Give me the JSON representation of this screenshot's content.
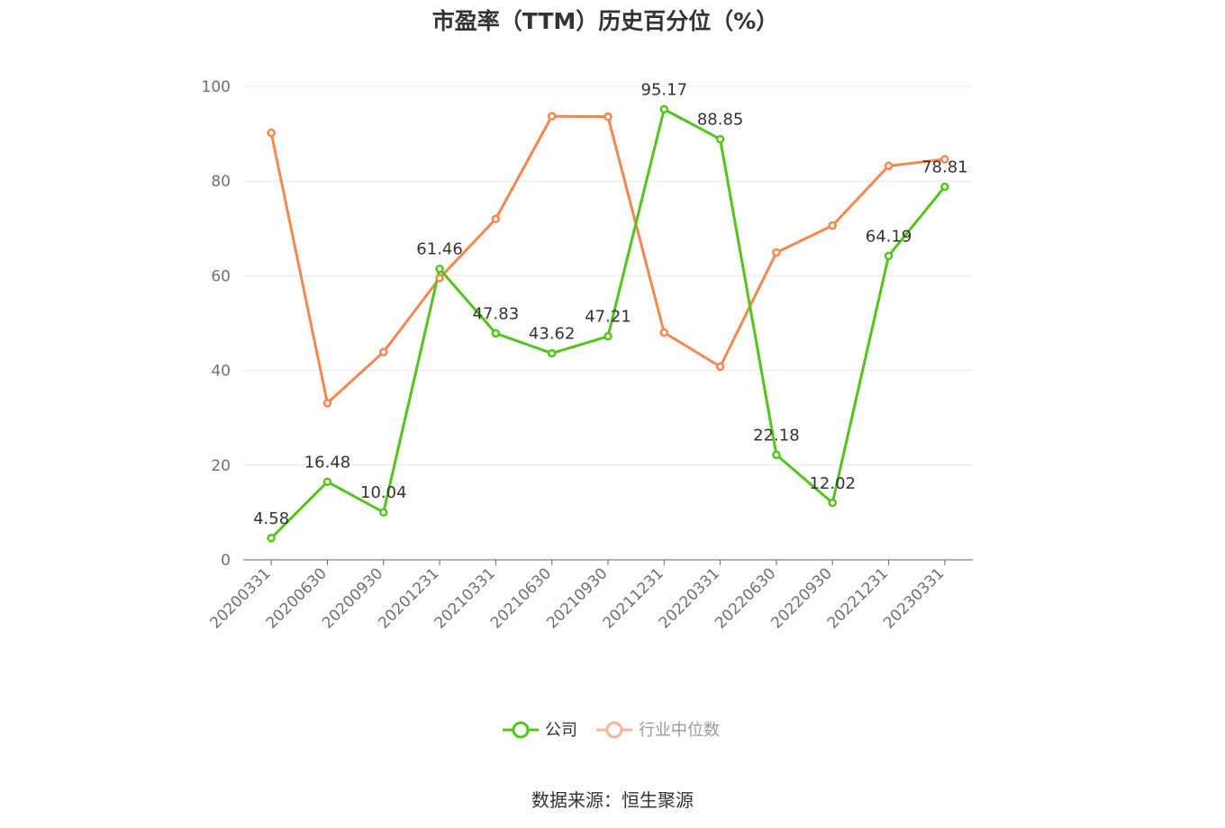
{
  "chart_data": {
    "type": "line",
    "title": "市盈率（TTM）历史百分位（%）",
    "xlabel": "",
    "ylabel": "",
    "ylim": [
      0,
      100
    ],
    "yticks": [
      0,
      20,
      40,
      60,
      80,
      100
    ],
    "grid": true,
    "legend_position": "bottom",
    "categories": [
      "20200331",
      "20200630",
      "20200930",
      "20201231",
      "20210331",
      "20210630",
      "20210930",
      "20211231",
      "20220331",
      "20220630",
      "20220930",
      "20221231",
      "20230331"
    ],
    "series": [
      {
        "name": "公司",
        "color": "#52c41a",
        "show_labels": true,
        "values": [
          4.58,
          16.48,
          10.04,
          61.46,
          47.83,
          43.62,
          47.21,
          95.17,
          88.85,
          22.18,
          12.02,
          64.19,
          78.81
        ],
        "labels": [
          "4.58",
          "16.48",
          "10.04",
          "61.46",
          "47.83",
          "43.62",
          "47.21",
          "95.17",
          "88.85",
          "22.18",
          "12.02",
          "64.19",
          "78.81"
        ]
      },
      {
        "name": "行业中位数",
        "color": "#f5874f",
        "show_labels": false,
        "values": [
          90.2,
          33.1,
          43.9,
          59.5,
          72.0,
          93.7,
          93.6,
          48.0,
          40.8,
          64.9,
          70.6,
          83.2,
          84.6
        ]
      }
    ]
  },
  "source": "数据来源：恒生聚源",
  "colors": {
    "axis": "#666666",
    "grid": "#e4e7ef",
    "tick_text": "#6e7079",
    "title_text": "#333333",
    "legend_inactive_text": "#999999"
  }
}
